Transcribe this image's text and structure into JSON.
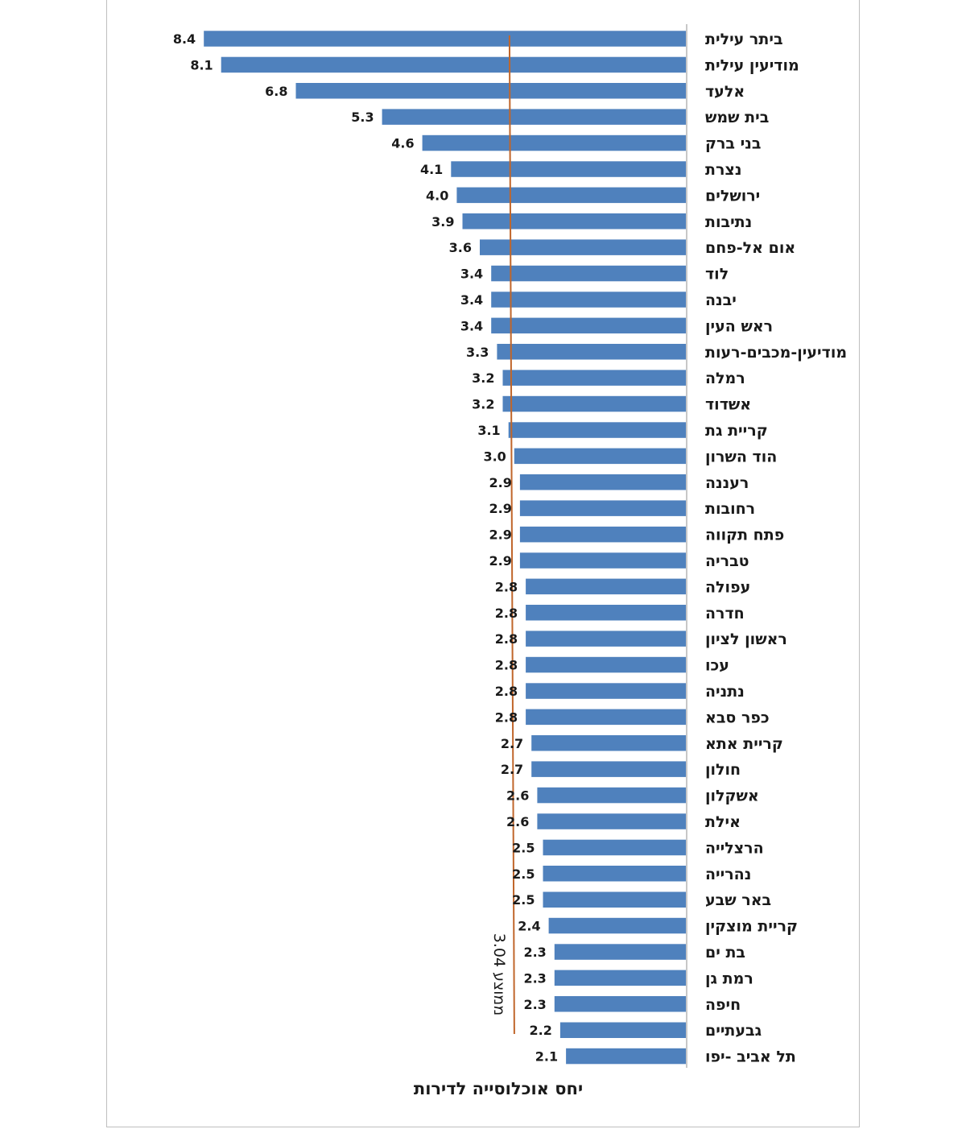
{
  "chart_data": {
    "type": "bar",
    "orientation": "horizontal",
    "direction": "rtl",
    "title": "יחס אוכלוסייה לדירות",
    "xlabel": "",
    "ylabel": "",
    "xlim": [
      0,
      10
    ],
    "grid": false,
    "bar_color": "#4f81bd",
    "reference_line": {
      "value": 3.04,
      "label": "3.04 ממוצע",
      "color": "#c0662b"
    },
    "categories": [
      "ביתר עילית",
      "מודיעין עילית",
      "אלעד",
      "בית שמש",
      "בני ברק",
      "נצרת",
      "ירושלים",
      "נתיבות",
      "אום אל-פחם",
      "לוד",
      "יבנה",
      "ראש העין",
      "מודיעין-מכבים-רעות",
      "רמלה",
      "אשדוד",
      "קריית גת",
      "הוד השרון",
      "רעננה",
      "רחובות",
      "פתח תקווה",
      "טבריה",
      "עפולה",
      "חדרה",
      "ראשון לציון",
      "עכו",
      "נתניה",
      "כפר סבא",
      "קריית אתא",
      "חולון",
      "אשקלון",
      "אילת",
      "הרצלייה",
      "נהרייה",
      "באר שבע",
      "קריית מוצקין",
      "בת ים",
      "רמת גן",
      "חיפה",
      "גבעתיים",
      "תל אביב -יפו"
    ],
    "values": [
      8.4,
      8.1,
      6.8,
      5.3,
      4.6,
      4.1,
      4.0,
      3.9,
      3.6,
      3.4,
      3.4,
      3.4,
      3.3,
      3.2,
      3.2,
      3.1,
      3.0,
      2.9,
      2.9,
      2.9,
      2.9,
      2.8,
      2.8,
      2.8,
      2.8,
      2.8,
      2.8,
      2.7,
      2.7,
      2.6,
      2.6,
      2.5,
      2.5,
      2.5,
      2.4,
      2.3,
      2.3,
      2.3,
      2.2,
      2.1
    ],
    "value_labels": [
      "8.4",
      "8.1",
      "6.8",
      "5.3",
      "4.6",
      "4.1",
      "4.0",
      "3.9",
      "3.6",
      "3.4",
      "3.4",
      "3.4",
      "3.3",
      "3.2",
      "3.2",
      "3.1",
      "3.0",
      "2.9",
      "2.9",
      "2.9",
      "2.9",
      "2.8",
      "2.8",
      "2.8",
      "2.8",
      "2.8",
      "2.8",
      "2.7",
      "2.7",
      "2.6",
      "2.6",
      "2.5",
      "2.5",
      "2.5",
      "2.4",
      "2.3",
      "2.3",
      "2.3",
      "2.2",
      "2.1"
    ]
  }
}
